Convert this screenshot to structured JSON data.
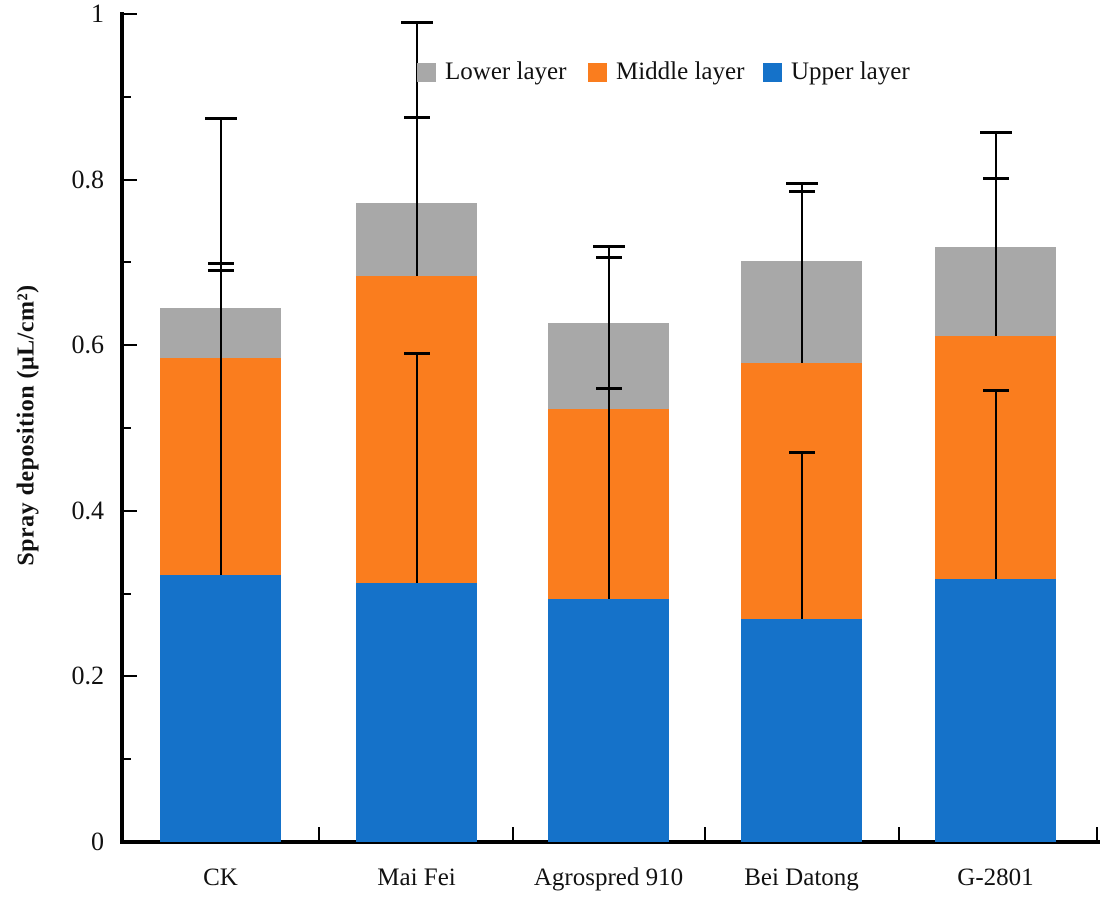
{
  "colors": {
    "upper": "#1572C9",
    "middle": "#FA7D1E",
    "lower": "#A8A8A8",
    "axis": "#000000",
    "background": "#FFFFFF"
  },
  "legend": {
    "items": [
      {
        "key": "lower",
        "label": "Lower layer"
      },
      {
        "key": "middle",
        "label": "Middle layer"
      },
      {
        "key": "upper",
        "label": "Upper layer"
      }
    ]
  },
  "chart_data": {
    "type": "bar",
    "subtype": "stacked-vertical",
    "title": "",
    "xlabel": "",
    "ylabel": "Spray deposition (μL/cm²)",
    "ylim": [
      0,
      1
    ],
    "y_major_ticks": [
      0,
      0.2,
      0.4,
      0.6,
      0.8,
      1
    ],
    "y_tick_labels": [
      "0",
      "0.2",
      "0.4",
      "0.6",
      "0.8",
      "1"
    ],
    "y_minor_ticks": [
      0.1,
      0.3,
      0.5,
      0.7,
      0.9
    ],
    "grid": false,
    "legend_position": "top-inside",
    "categories": [
      "CK",
      "Mai Fei",
      "Agrospred 910",
      "Bei Datong",
      "G-2801"
    ],
    "series": [
      {
        "name": "Upper layer",
        "color_key": "upper",
        "values": [
          0.323,
          0.313,
          0.294,
          0.269,
          0.318
        ]
      },
      {
        "name": "Middle layer",
        "color_key": "middle",
        "values": [
          0.262,
          0.371,
          0.229,
          0.309,
          0.293
        ]
      },
      {
        "name": "Lower layer",
        "color_key": "lower",
        "values": [
          0.06,
          0.088,
          0.104,
          0.124,
          0.108
        ]
      }
    ],
    "stack_totals": [
      0.645,
      0.772,
      0.627,
      0.702,
      0.719
    ],
    "error_bar_upper_ends": {
      "upper_layer_top": [
        0.699,
        0.591,
        0.548,
        0.471,
        0.546
      ],
      "middle_layer_top": [
        0.874,
        0.99,
        0.72,
        0.796,
        0.857
      ],
      "total_top": [
        0.691,
        0.876,
        0.706,
        0.786,
        0.802
      ]
    }
  }
}
